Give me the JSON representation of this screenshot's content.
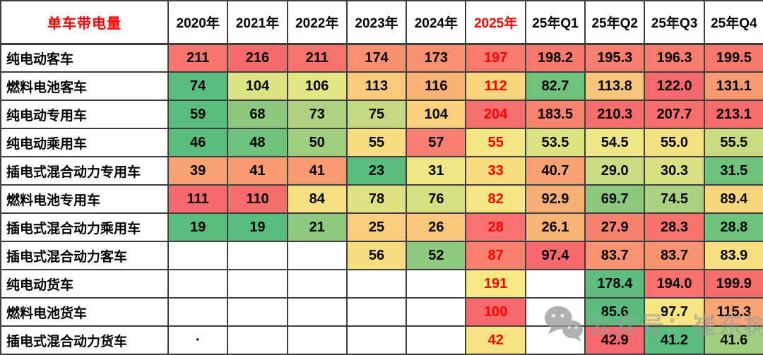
{
  "header": {
    "corner_label": "单车带电量",
    "corner_color": "#FF0000",
    "columns": [
      {
        "label": "2020年",
        "color": "#000000"
      },
      {
        "label": "2021年",
        "color": "#000000"
      },
      {
        "label": "2022年",
        "color": "#000000"
      },
      {
        "label": "2023年",
        "color": "#000000"
      },
      {
        "label": "2024年",
        "color": "#000000"
      },
      {
        "label": "2025年",
        "color": "#FF0000"
      },
      {
        "label": "25年Q1",
        "color": "#000000"
      },
      {
        "label": "25年Q2",
        "color": "#000000"
      },
      {
        "label": "25年Q3",
        "color": "#000000"
      },
      {
        "label": "25年Q4",
        "color": "#000000"
      }
    ]
  },
  "accent_red": "#FF0000",
  "rows": [
    {
      "label": "纯电动客车",
      "cells": [
        {
          "v": "211",
          "bg": "#F7746F"
        },
        {
          "v": "216",
          "bg": "#F66A6C"
        },
        {
          "v": "211",
          "bg": "#F7736E"
        },
        {
          "v": "174",
          "bg": "#F9916F"
        },
        {
          "v": "173",
          "bg": "#F9906F"
        },
        {
          "v": "197",
          "bg": "#F87C6E",
          "fg": "#FF0000"
        },
        {
          "v": "198.2",
          "bg": "#F87A6E"
        },
        {
          "v": "195.3",
          "bg": "#F87E6F"
        },
        {
          "v": "196.3",
          "bg": "#F87D6F"
        },
        {
          "v": "199.5",
          "bg": "#F8796D"
        }
      ]
    },
    {
      "label": "燃料电池客车",
      "cells": [
        {
          "v": "74",
          "bg": "#5BBD7D"
        },
        {
          "v": "104",
          "bg": "#DDE382"
        },
        {
          "v": "106",
          "bg": "#E3E483"
        },
        {
          "v": "113",
          "bg": "#F9C97C"
        },
        {
          "v": "116",
          "bg": "#F8B175"
        },
        {
          "v": "112",
          "bg": "#FAD57E",
          "fg": "#FF0000"
        },
        {
          "v": "82.7",
          "bg": "#6FC27B"
        },
        {
          "v": "113.8",
          "bg": "#F9C47B"
        },
        {
          "v": "122.0",
          "bg": "#F5696D"
        },
        {
          "v": "131.1",
          "bg": "#F79A72"
        }
      ]
    },
    {
      "label": "纯电动专用车",
      "cells": [
        {
          "v": "59",
          "bg": "#5BBD7D"
        },
        {
          "v": "68",
          "bg": "#8BC87D"
        },
        {
          "v": "73",
          "bg": "#AED27F"
        },
        {
          "v": "75",
          "bg": "#C4DA80"
        },
        {
          "v": "104",
          "bg": "#F9D07D"
        },
        {
          "v": "204",
          "bg": "#F66E6D",
          "fg": "#FF0000"
        },
        {
          "v": "183.5",
          "bg": "#F8836F"
        },
        {
          "v": "210.3",
          "bg": "#F66D6C"
        },
        {
          "v": "207.7",
          "bg": "#F66E6D"
        },
        {
          "v": "213.1",
          "bg": "#F66B6B"
        }
      ]
    },
    {
      "label": "纯电动乘用车",
      "cells": [
        {
          "v": "46",
          "bg": "#5BBD7D"
        },
        {
          "v": "48",
          "bg": "#6FC27B"
        },
        {
          "v": "50",
          "bg": "#9FCE7E"
        },
        {
          "v": "55",
          "bg": "#F8DC80"
        },
        {
          "v": "57",
          "bg": "#F87F6F"
        },
        {
          "v": "55",
          "bg": "#F3E683",
          "fg": "#FF0000"
        },
        {
          "v": "53.5",
          "bg": "#DCE182"
        },
        {
          "v": "54.5",
          "bg": "#EFE684"
        },
        {
          "v": "55.0",
          "bg": "#F3E181"
        },
        {
          "v": "55.5",
          "bg": "#C9DB80"
        }
      ]
    },
    {
      "label": "插电式混合动力专用车",
      "cells": [
        {
          "v": "39",
          "bg": "#F8A273"
        },
        {
          "v": "41",
          "bg": "#F89A72"
        },
        {
          "v": "41",
          "bg": "#F89A72"
        },
        {
          "v": "23",
          "bg": "#5BBD7D"
        },
        {
          "v": "31",
          "bg": "#EFE684"
        },
        {
          "v": "33",
          "bg": "#F8DC80",
          "fg": "#FF0000"
        },
        {
          "v": "40.7",
          "bg": "#F8A273"
        },
        {
          "v": "29.0",
          "bg": "#C9DC81"
        },
        {
          "v": "30.3",
          "bg": "#D9E082"
        },
        {
          "v": "31.5",
          "bg": "#6FC27B"
        }
      ]
    },
    {
      "label": "燃料电池专用车",
      "cells": [
        {
          "v": "111",
          "bg": "#F6696C"
        },
        {
          "v": "110",
          "bg": "#F66D6D"
        },
        {
          "v": "84",
          "bg": "#F8DF81"
        },
        {
          "v": "78",
          "bg": "#DFE182"
        },
        {
          "v": "76",
          "bg": "#D5DE81"
        },
        {
          "v": "82",
          "bg": "#F5E683",
          "fg": "#FF0000"
        },
        {
          "v": "92.9",
          "bg": "#F6AE77"
        },
        {
          "v": "69.7",
          "bg": "#8BC87D"
        },
        {
          "v": "74.5",
          "bg": "#AAD17F"
        },
        {
          "v": "89.4",
          "bg": "#F7D67E"
        }
      ]
    },
    {
      "label": "插电式混合动力乘用车",
      "cells": [
        {
          "v": "19",
          "bg": "#5BBD7D"
        },
        {
          "v": "19",
          "bg": "#5BBD7D"
        },
        {
          "v": "21",
          "bg": "#8DC97E"
        },
        {
          "v": "25",
          "bg": "#F9CE7D"
        },
        {
          "v": "26",
          "bg": "#F9C77B"
        },
        {
          "v": "28",
          "bg": "#F7726E",
          "fg": "#FF0000"
        },
        {
          "v": "26.1",
          "bg": "#F8B377"
        },
        {
          "v": "27.9",
          "bg": "#F7816F"
        },
        {
          "v": "28.3",
          "bg": "#F7736D"
        },
        {
          "v": "28.8",
          "bg": "#6FC27B"
        }
      ]
    },
    {
      "label": "插电式混合动力客车",
      "cells": [
        {
          "v": "",
          "bg": "#FFFFFF"
        },
        {
          "v": "",
          "bg": "#FFFFFF"
        },
        {
          "v": "",
          "bg": "#FFFFFF"
        },
        {
          "v": "56",
          "bg": "#F7DC80"
        },
        {
          "v": "52",
          "bg": "#8DC97E"
        },
        {
          "v": "87",
          "bg": "#F7816E",
          "fg": "#FF0000"
        },
        {
          "v": "97.4",
          "bg": "#F6696C"
        },
        {
          "v": "83.7",
          "bg": "#F8926F"
        },
        {
          "v": "83.7",
          "bg": "#F8926F"
        },
        {
          "v": "83.9",
          "bg": "#F7DF81"
        }
      ]
    },
    {
      "label": "纯电动货车",
      "cells": [
        {
          "v": "",
          "bg": "#FFFFFF"
        },
        {
          "v": "",
          "bg": "#FFFFFF"
        },
        {
          "v": "",
          "bg": "#FFFFFF"
        },
        {
          "v": "",
          "bg": "#FFFFFF"
        },
        {
          "v": "",
          "bg": "#FFFFFF"
        },
        {
          "v": "191",
          "bg": "#F7E883",
          "fg": "#FF0000"
        },
        {
          "v": "",
          "bg": "#FFFFFF"
        },
        {
          "v": "178.4",
          "bg": "#5CBD7E"
        },
        {
          "v": "194.0",
          "bg": "#F7716D"
        },
        {
          "v": "199.9",
          "bg": "#F66E6C"
        }
      ]
    },
    {
      "label": "燃料电池货车",
      "cells": [
        {
          "v": "",
          "bg": "#FFFFFF"
        },
        {
          "v": "",
          "bg": "#FFFFFF"
        },
        {
          "v": "",
          "bg": "#FFFFFF"
        },
        {
          "v": "",
          "bg": "#FFFFFF"
        },
        {
          "v": "",
          "bg": "#FFFFFF"
        },
        {
          "v": "100",
          "bg": "#F6696C",
          "fg": "#FF0000"
        },
        {
          "v": "",
          "bg": "#FFFFFF"
        },
        {
          "v": "85.6",
          "bg": "#5BBD7D"
        },
        {
          "v": "97.7",
          "bg": "#F7E482"
        },
        {
          "v": "115.3",
          "bg": "#F8A474"
        }
      ]
    },
    {
      "label": "插电式混合动力货车",
      "cells": [
        {
          "v": "·",
          "bg": "#FFFFFF"
        },
        {
          "v": "",
          "bg": "#FFFFFF"
        },
        {
          "v": "",
          "bg": "#FFFFFF"
        },
        {
          "v": "",
          "bg": "#FFFFFF"
        },
        {
          "v": "",
          "bg": "#FFFFFF"
        },
        {
          "v": "42",
          "bg": "#F7E383",
          "fg": "#FF0000"
        },
        {
          "v": "",
          "bg": "#FFFFFF"
        },
        {
          "v": "42.9",
          "bg": "#F6696C"
        },
        {
          "v": "41.2",
          "bg": "#5BBD7D"
        },
        {
          "v": "41.6",
          "bg": "#9ED07F"
        }
      ]
    }
  ],
  "watermark": {
    "icon": "wechat-icon",
    "text": "公众号：崔东树",
    "color": "#9A9A9A"
  },
  "chart_data": {
    "type": "heatmap",
    "title": "单车带电量",
    "columns": [
      "2020年",
      "2021年",
      "2022年",
      "2023年",
      "2024年",
      "2025年",
      "25年Q1",
      "25年Q2",
      "25年Q3",
      "25年Q4"
    ],
    "rows": [
      {
        "name": "纯电动客车",
        "values": [
          211,
          216,
          211,
          174,
          173,
          197,
          198.2,
          195.3,
          196.3,
          199.5
        ]
      },
      {
        "name": "燃料电池客车",
        "values": [
          74,
          104,
          106,
          113,
          116,
          112,
          82.7,
          113.8,
          122.0,
          131.1
        ]
      },
      {
        "name": "纯电动专用车",
        "values": [
          59,
          68,
          73,
          75,
          104,
          204,
          183.5,
          210.3,
          207.7,
          213.1
        ]
      },
      {
        "name": "纯电动乘用车",
        "values": [
          46,
          48,
          50,
          55,
          57,
          55,
          53.5,
          54.5,
          55.0,
          55.5
        ]
      },
      {
        "name": "插电式混合动力专用车",
        "values": [
          39,
          41,
          41,
          23,
          31,
          33,
          40.7,
          29.0,
          30.3,
          31.5
        ]
      },
      {
        "name": "燃料电池专用车",
        "values": [
          111,
          110,
          84,
          78,
          76,
          82,
          92.9,
          69.7,
          74.5,
          89.4
        ]
      },
      {
        "name": "插电式混合动力乘用车",
        "values": [
          19,
          19,
          21,
          25,
          26,
          28,
          26.1,
          27.9,
          28.3,
          28.8
        ]
      },
      {
        "name": "插电式混合动力客车",
        "values": [
          null,
          null,
          null,
          56,
          52,
          87,
          97.4,
          83.7,
          83.7,
          83.9
        ]
      },
      {
        "name": "纯电动货车",
        "values": [
          null,
          null,
          null,
          null,
          null,
          191,
          null,
          178.4,
          194.0,
          199.9
        ]
      },
      {
        "name": "燃料电池货车",
        "values": [
          null,
          null,
          null,
          null,
          null,
          100,
          null,
          85.6,
          97.7,
          115.3
        ]
      },
      {
        "name": "插电式混合动力货车",
        "values": [
          null,
          null,
          null,
          null,
          null,
          42,
          null,
          42.9,
          41.2,
          41.6
        ]
      }
    ],
    "color_scale": "excel-3-color green(#5BBD7D) -> yellow(#F7E483) -> red(#F6696C)",
    "highlight_column": "2025年",
    "highlight_text_color": "#FF0000"
  }
}
